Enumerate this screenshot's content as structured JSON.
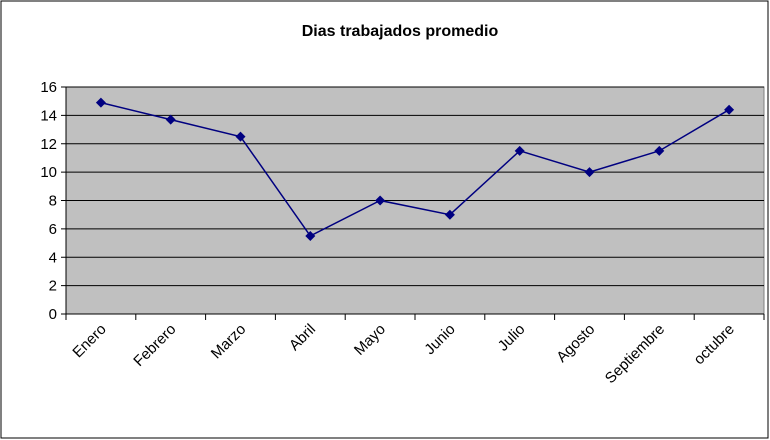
{
  "chart_data": {
    "type": "line",
    "title": "Dias trabajados promedio",
    "categories": [
      "Enero",
      "Febrero",
      "Marzo",
      "Abril",
      "Mayo",
      "Junio",
      "Julio",
      "Agosto",
      "Septiembre",
      "octubre"
    ],
    "values": [
      14.9,
      13.7,
      12.5,
      5.5,
      8,
      7,
      11.5,
      10,
      11.5,
      14.4
    ],
    "color": "#000080",
    "ylim": [
      0,
      16
    ],
    "yticks": [
      0,
      2,
      4,
      6,
      8,
      10,
      12,
      14,
      16
    ],
    "grid": true
  }
}
